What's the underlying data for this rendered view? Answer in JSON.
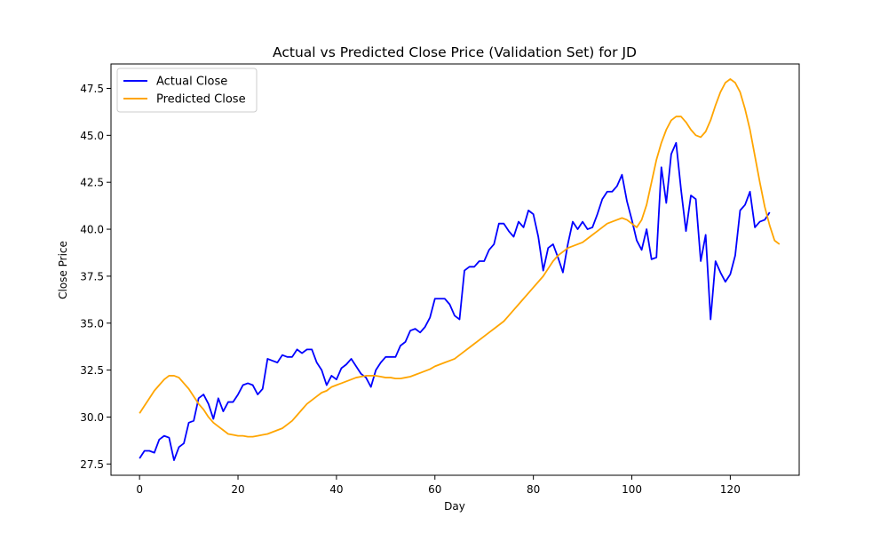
{
  "chart_data": {
    "type": "line",
    "title": "Actual vs Predicted Close Price (Validation Set) for JD",
    "xlabel": "Day",
    "ylabel": "Close Price",
    "xlim": [
      -5.8,
      134
    ],
    "ylim": [
      26.9,
      48.8
    ],
    "xticks": [
      0,
      20,
      40,
      60,
      80,
      100,
      120
    ],
    "yticks": [
      27.5,
      30.0,
      32.5,
      35.0,
      37.5,
      40.0,
      42.5,
      45.0,
      47.5
    ],
    "ytick_labels": [
      "27.5",
      "30.0",
      "32.5",
      "35.0",
      "37.5",
      "40.0",
      "42.5",
      "45.0",
      "47.5"
    ],
    "grid": false,
    "legend_position": "top-left",
    "series": [
      {
        "name": "Actual Close",
        "color": "#0000ff",
        "values": [
          27.8,
          28.2,
          28.2,
          28.1,
          28.8,
          29.0,
          28.9,
          27.7,
          28.4,
          28.6,
          29.7,
          29.8,
          31.0,
          31.2,
          30.7,
          29.9,
          31.0,
          30.3,
          30.8,
          30.8,
          31.2,
          31.7,
          31.8,
          31.7,
          31.2,
          31.5,
          33.1,
          33.0,
          32.9,
          33.3,
          33.2,
          33.2,
          33.6,
          33.4,
          33.6,
          33.6,
          32.9,
          32.5,
          31.7,
          32.2,
          32.0,
          32.6,
          32.8,
          33.1,
          32.7,
          32.3,
          32.1,
          31.6,
          32.5,
          32.9,
          33.2,
          33.2,
          33.2,
          33.8,
          34.0,
          34.6,
          34.7,
          34.5,
          34.8,
          35.3,
          36.3,
          36.3,
          36.3,
          36.0,
          35.4,
          35.2,
          37.8,
          38.0,
          38.0,
          38.3,
          38.3,
          38.9,
          39.2,
          40.3,
          40.3,
          39.9,
          39.6,
          40.4,
          40.1,
          41.0,
          40.8,
          39.6,
          37.8,
          39.0,
          39.2,
          38.5,
          37.7,
          39.2,
          40.4,
          40.0,
          40.4,
          40.0,
          40.1,
          40.8,
          41.6,
          42.0,
          42.0,
          42.3,
          42.9,
          41.5,
          40.5,
          39.4,
          38.9,
          40.0,
          38.4,
          38.5,
          43.3,
          41.4,
          44.0,
          44.6,
          42.1,
          39.9,
          41.8,
          41.6,
          38.3,
          39.7,
          35.2,
          38.3,
          37.7,
          37.2,
          37.6,
          38.6,
          41.0,
          41.3,
          42.0,
          40.1,
          40.4,
          40.5,
          40.9
        ]
      },
      {
        "name": "Predicted Close",
        "color": "#ffa500",
        "values": [
          30.2,
          30.6,
          31.0,
          31.4,
          31.7,
          32.0,
          32.2,
          32.2,
          32.1,
          31.8,
          31.5,
          31.1,
          30.7,
          30.4,
          30.0,
          29.7,
          29.5,
          29.3,
          29.1,
          29.05,
          29.0,
          29.0,
          28.95,
          28.95,
          29.0,
          29.05,
          29.1,
          29.2,
          29.3,
          29.4,
          29.6,
          29.8,
          30.1,
          30.4,
          30.7,
          30.9,
          31.1,
          31.3,
          31.4,
          31.6,
          31.7,
          31.8,
          31.9,
          32.0,
          32.1,
          32.15,
          32.2,
          32.2,
          32.2,
          32.15,
          32.1,
          32.1,
          32.05,
          32.05,
          32.1,
          32.15,
          32.25,
          32.35,
          32.45,
          32.55,
          32.7,
          32.8,
          32.9,
          33.0,
          33.1,
          33.3,
          33.5,
          33.7,
          33.9,
          34.1,
          34.3,
          34.5,
          34.7,
          34.9,
          35.1,
          35.4,
          35.7,
          36.0,
          36.3,
          36.6,
          36.9,
          37.2,
          37.5,
          37.9,
          38.3,
          38.6,
          38.8,
          39.0,
          39.1,
          39.2,
          39.3,
          39.5,
          39.7,
          39.9,
          40.1,
          40.3,
          40.4,
          40.5,
          40.6,
          40.5,
          40.3,
          40.1,
          40.5,
          41.3,
          42.5,
          43.7,
          44.6,
          45.3,
          45.8,
          46.0,
          46.0,
          45.7,
          45.3,
          45.0,
          44.9,
          45.2,
          45.8,
          46.6,
          47.3,
          47.8,
          48.0,
          47.8,
          47.3,
          46.4,
          45.3,
          43.9,
          42.5,
          41.2,
          40.2,
          39.4,
          39.2
        ]
      }
    ]
  }
}
